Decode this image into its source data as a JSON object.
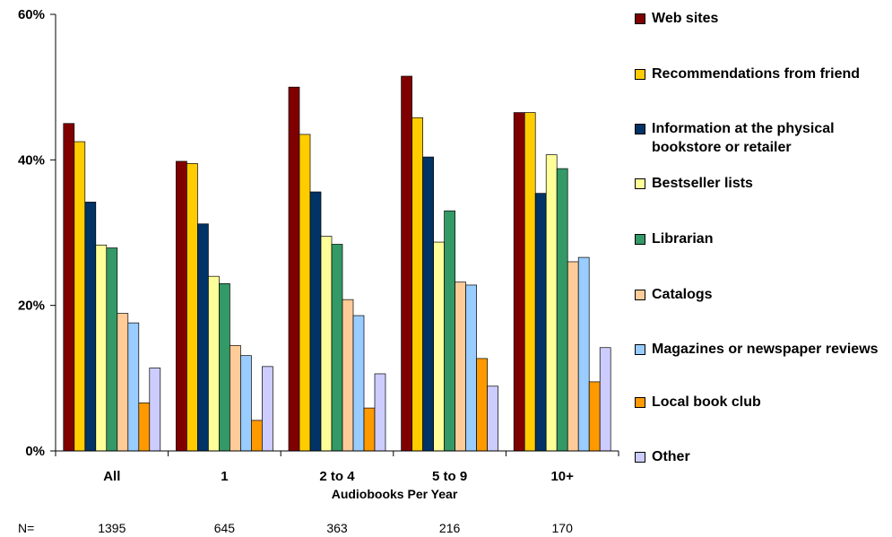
{
  "chart_data": {
    "type": "bar",
    "title": "",
    "xlabel": "Audiobooks Per Year",
    "ylabel": "",
    "ylim": [
      0,
      60
    ],
    "y_ticks": [
      "0%",
      "20%",
      "40%",
      "60%"
    ],
    "categories": [
      "All",
      "1",
      "2 to 4",
      "5 to 9",
      "10+"
    ],
    "n_label": "N=",
    "n_values": [
      "1395",
      "645",
      "363",
      "216",
      "170"
    ],
    "grid": false,
    "legend_position": "right",
    "series": [
      {
        "name": "Web sites",
        "color": "#800000",
        "values": [
          45.0,
          39.8,
          50.0,
          51.5,
          46.5
        ]
      },
      {
        "name": "Recommendations from friend",
        "color": "#ffcc00",
        "values": [
          42.5,
          39.5,
          43.5,
          45.8,
          46.5
        ]
      },
      {
        "name": "Information at the physical bookstore or retailer",
        "color": "#003366",
        "values": [
          34.2,
          31.2,
          35.6,
          40.4,
          35.4
        ]
      },
      {
        "name": "Bestseller lists",
        "color": "#ffff99",
        "values": [
          28.3,
          24.0,
          29.5,
          28.7,
          40.7
        ]
      },
      {
        "name": "Librarian",
        "color": "#339966",
        "values": [
          27.9,
          23.0,
          28.4,
          33.0,
          38.8
        ]
      },
      {
        "name": "Catalogs",
        "color": "#ffcc99",
        "values": [
          18.9,
          14.5,
          20.8,
          23.2,
          26.0
        ]
      },
      {
        "name": "Magazines or newspaper reviews",
        "color": "#99ccff",
        "values": [
          17.6,
          13.1,
          18.6,
          22.8,
          26.6
        ]
      },
      {
        "name": "Local book club",
        "color": "#ff9900",
        "values": [
          6.6,
          4.2,
          5.9,
          12.7,
          9.5
        ]
      },
      {
        "name": "Other",
        "color": "#ccccff",
        "values": [
          11.4,
          11.6,
          10.6,
          8.9,
          14.2
        ]
      }
    ]
  }
}
